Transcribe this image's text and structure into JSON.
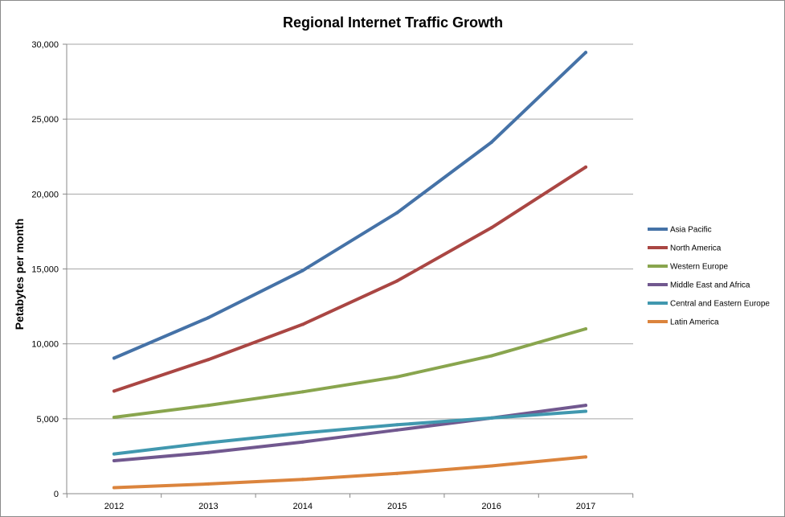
{
  "chart_data": {
    "type": "line",
    "title": "Regional Internet Traffic Growth",
    "xlabel": "",
    "ylabel": "Petabytes per month",
    "x": [
      "2012",
      "2013",
      "2014",
      "2015",
      "2016",
      "2017"
    ],
    "ylim": [
      0,
      30000
    ],
    "yticks": [
      0,
      5000,
      10000,
      15000,
      20000,
      25000,
      30000
    ],
    "ytick_labels": [
      "0",
      "5,000",
      "10,000",
      "15,000",
      "20,000",
      "25,000",
      "30,000"
    ],
    "grid": "horizontal",
    "legend_position": "right",
    "series": [
      {
        "name": "Asia Pacific",
        "color": "#4572A7",
        "values": [
          9050,
          11750,
          14900,
          18750,
          23450,
          29450
        ]
      },
      {
        "name": "North America",
        "color": "#AA4643",
        "values": [
          6850,
          8950,
          11300,
          14200,
          17750,
          21800
        ]
      },
      {
        "name": "Western Europe",
        "color": "#89A54E",
        "values": [
          5100,
          5900,
          6800,
          7800,
          9200,
          11000
        ]
      },
      {
        "name": "Middle East and Africa",
        "color": "#71588F",
        "values": [
          2200,
          2750,
          3450,
          4250,
          5050,
          5900
        ]
      },
      {
        "name": "Central and Eastern Europe",
        "color": "#4198AF",
        "values": [
          2650,
          3400,
          4050,
          4600,
          5050,
          5500
        ]
      },
      {
        "name": "Latin America",
        "color": "#DB843D",
        "values": [
          400,
          650,
          950,
          1350,
          1850,
          2450
        ]
      }
    ]
  }
}
